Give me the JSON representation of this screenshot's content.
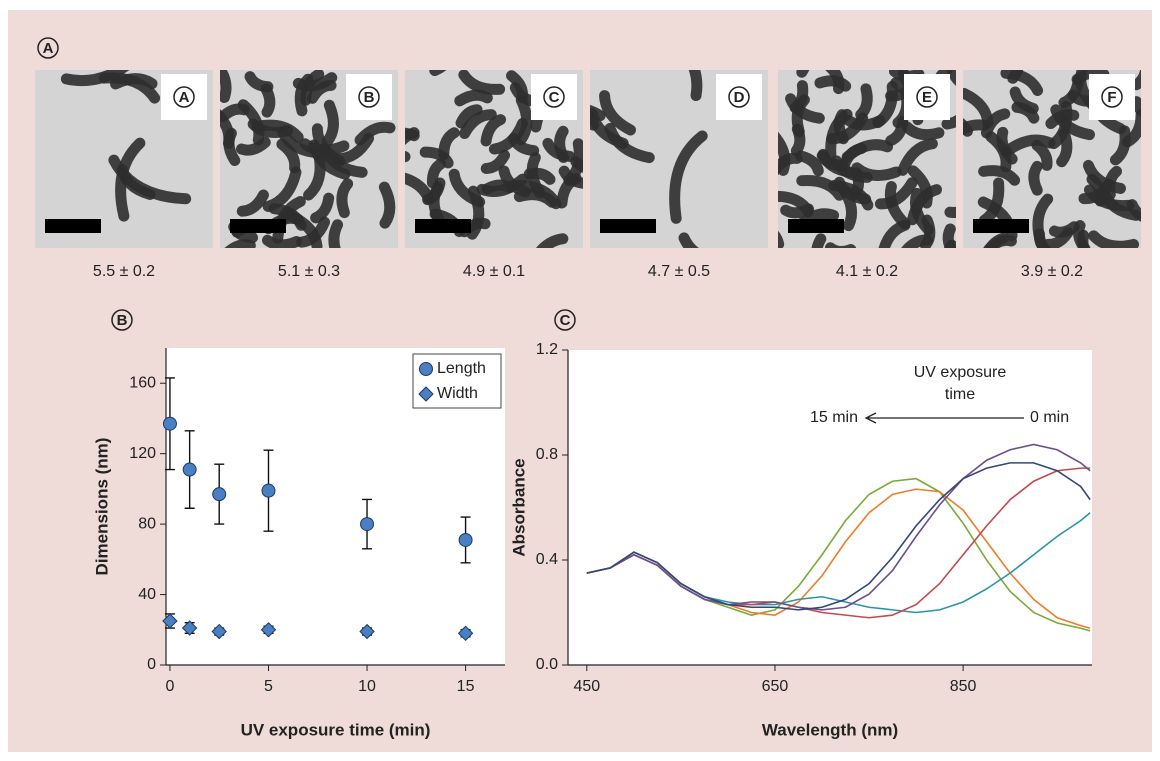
{
  "figure_label": "A",
  "micrographs": [
    {
      "label": "A",
      "aspect_ratio": "5.5 ± 0.2"
    },
    {
      "label": "B",
      "aspect_ratio": "5.1 ± 0.3"
    },
    {
      "label": "C",
      "aspect_ratio": "4.9 ± 0.1"
    },
    {
      "label": "D",
      "aspect_ratio": "4.7 ± 0.5"
    },
    {
      "label": "E",
      "aspect_ratio": "4.1 ± 0.2"
    },
    {
      "label": "F",
      "aspect_ratio": "3.9 ± 0.2"
    }
  ],
  "chart_data": [
    {
      "type": "scatter",
      "panel_label": "B",
      "x_label": "UV exposure time (min)",
      "y_label": "Dimensions (nm)",
      "x": [
        0,
        1,
        2.5,
        5,
        10,
        15
      ],
      "series": [
        {
          "name": "Length",
          "color": "#4a7fc1",
          "marker": "circle",
          "values": [
            137,
            111,
            97,
            99,
            80,
            71
          ],
          "errors": [
            26,
            22,
            17,
            23,
            14,
            13
          ]
        },
        {
          "name": "Width",
          "color": "#4a7fc1",
          "marker": "diamond",
          "values": [
            25,
            21,
            19,
            20,
            19,
            18
          ],
          "errors": [
            4,
            3,
            2,
            2,
            2,
            2
          ]
        }
      ],
      "xlim": [
        -0.2,
        17
      ],
      "xticks": [
        0,
        5,
        10,
        15
      ],
      "ylim": [
        0,
        180
      ],
      "yticks": [
        0,
        40,
        80,
        120,
        160
      ],
      "legend": "upper right"
    },
    {
      "type": "line",
      "panel_label": "C",
      "x_label": "Wavelength (nm)",
      "y_label": "Absorbance",
      "annotation_lines": [
        "UV exposure",
        "time"
      ],
      "arrow_start_label": "0 min",
      "arrow_end_label": "15 min",
      "x": [
        450,
        475,
        500,
        525,
        550,
        575,
        600,
        625,
        650,
        675,
        700,
        725,
        750,
        775,
        800,
        825,
        850,
        875,
        900,
        925,
        950,
        975,
        985
      ],
      "series": [
        {
          "color": "#7aab3a",
          "values": [
            0.35,
            0.37,
            0.42,
            0.38,
            0.3,
            0.25,
            0.22,
            0.19,
            0.21,
            0.3,
            0.42,
            0.55,
            0.65,
            0.7,
            0.71,
            0.66,
            0.54,
            0.4,
            0.28,
            0.2,
            0.16,
            0.14,
            0.13
          ]
        },
        {
          "color": "#ee7d2a",
          "values": [
            0.35,
            0.37,
            0.43,
            0.39,
            0.31,
            0.26,
            0.23,
            0.2,
            0.19,
            0.24,
            0.34,
            0.47,
            0.58,
            0.65,
            0.67,
            0.66,
            0.59,
            0.47,
            0.35,
            0.25,
            0.18,
            0.15,
            0.14
          ]
        },
        {
          "color": "#2a95a8",
          "values": [
            0.35,
            0.37,
            0.43,
            0.39,
            0.31,
            0.26,
            0.24,
            0.23,
            0.23,
            0.25,
            0.26,
            0.24,
            0.22,
            0.21,
            0.2,
            0.21,
            0.24,
            0.29,
            0.35,
            0.42,
            0.49,
            0.55,
            0.58
          ]
        },
        {
          "color": "#c24a4a",
          "values": [
            0.35,
            0.37,
            0.42,
            0.38,
            0.3,
            0.25,
            0.23,
            0.23,
            0.24,
            0.22,
            0.2,
            0.19,
            0.18,
            0.19,
            0.23,
            0.31,
            0.42,
            0.53,
            0.63,
            0.7,
            0.74,
            0.75,
            0.75
          ]
        },
        {
          "color": "#6b4f8e",
          "values": [
            0.35,
            0.37,
            0.42,
            0.38,
            0.3,
            0.25,
            0.23,
            0.24,
            0.24,
            0.22,
            0.21,
            0.22,
            0.27,
            0.36,
            0.49,
            0.61,
            0.71,
            0.78,
            0.82,
            0.84,
            0.82,
            0.77,
            0.74
          ]
        },
        {
          "color": "#34477a",
          "values": [
            0.35,
            0.37,
            0.43,
            0.39,
            0.31,
            0.26,
            0.23,
            0.22,
            0.22,
            0.21,
            0.22,
            0.25,
            0.31,
            0.41,
            0.53,
            0.63,
            0.71,
            0.75,
            0.77,
            0.77,
            0.74,
            0.68,
            0.63
          ]
        }
      ],
      "xlim": [
        430,
        987
      ],
      "xticks": [
        450,
        650,
        850
      ],
      "ylim": [
        0,
        1.2
      ],
      "yticks": [
        {
          "value": 0,
          "label": "0.0"
        },
        0.4,
        0.8,
        1.2
      ]
    }
  ]
}
